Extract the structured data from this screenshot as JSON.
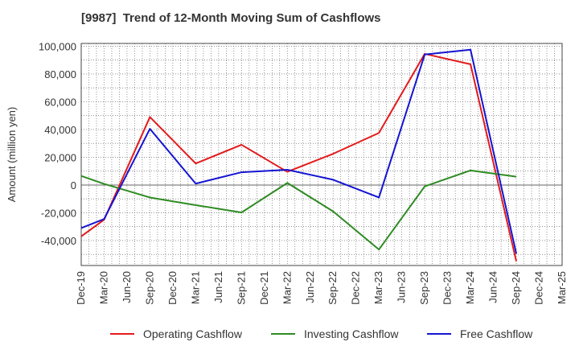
{
  "chart_data": {
    "type": "line",
    "title": "[9987]  Trend of 12-Month Moving Sum of Cashflows",
    "xlabel": "",
    "ylabel": "Amount (million yen)",
    "categories": [
      "Dec-19",
      "Mar-20",
      "Jun-20",
      "Sep-20",
      "Dec-20",
      "Mar-21",
      "Jun-21",
      "Sep-21",
      "Dec-21",
      "Mar-22",
      "Jun-22",
      "Sep-22",
      "Dec-22",
      "Mar-23",
      "Jun-23",
      "Sep-23",
      "Dec-23",
      "Mar-24",
      "Jun-24",
      "Sep-24",
      "Dec-24",
      "Mar-25"
    ],
    "yticks": [
      100000,
      80000,
      60000,
      40000,
      20000,
      0,
      -20000,
      -40000
    ],
    "ytick_labels": [
      "100,000",
      "80,000",
      "60,000",
      "40,000",
      "20,000",
      "0",
      "-20,000",
      "-40,000"
    ],
    "ylim": [
      -58000,
      102000
    ],
    "grid": true,
    "legend_position": "bottom",
    "series": [
      {
        "name": "Operating Cashflow",
        "color": "#e31a1c",
        "points": [
          [
            0,
            -37000
          ],
          [
            1,
            -25000
          ],
          [
            3,
            49000
          ],
          [
            5,
            15500
          ],
          [
            7,
            29000
          ],
          [
            9,
            9500
          ],
          [
            11,
            22500
          ],
          [
            13,
            37500
          ],
          [
            15,
            94500
          ],
          [
            17,
            87000
          ],
          [
            19,
            -55000
          ]
        ]
      },
      {
        "name": "Investing Cashflow",
        "color": "#2e8b22",
        "points": [
          [
            0,
            6500
          ],
          [
            1,
            800
          ],
          [
            3,
            -9000
          ],
          [
            5,
            -14500
          ],
          [
            7,
            -19800
          ],
          [
            9,
            1500
          ],
          [
            11,
            -19000
          ],
          [
            13,
            -46500
          ],
          [
            15,
            -1000
          ],
          [
            17,
            10500
          ],
          [
            19,
            6000
          ]
        ]
      },
      {
        "name": "Free Cashflow",
        "color": "#1414d2",
        "points": [
          [
            0,
            -31000
          ],
          [
            1,
            -24500
          ],
          [
            3,
            40500
          ],
          [
            5,
            1000
          ],
          [
            7,
            9200
          ],
          [
            9,
            11000
          ],
          [
            11,
            3800
          ],
          [
            13,
            -9000
          ],
          [
            15,
            94000
          ],
          [
            17,
            97500
          ],
          [
            19,
            -49500
          ]
        ]
      }
    ]
  }
}
